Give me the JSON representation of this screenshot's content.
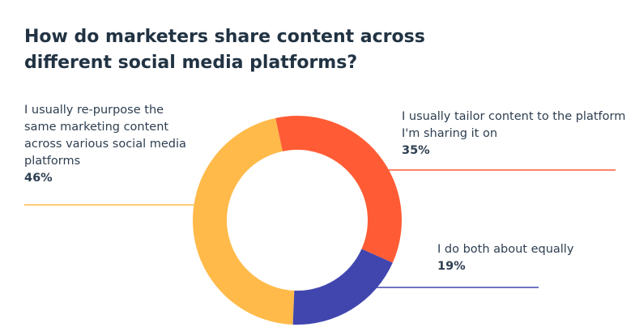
{
  "chart_data": {
    "type": "pie",
    "donut": true,
    "title": "How do marketers share content across different social media platforms?",
    "slices": [
      {
        "label": "I usually tailor content to the platform I'm sharing it on",
        "value": 35,
        "value_label": "35%",
        "color": "#FF5C35"
      },
      {
        "label": "I do both about equally",
        "value": 19,
        "value_label": "19%",
        "color": "#4146AF"
      },
      {
        "label": "I usually re-purpose the same marketing content across various social media platforms",
        "value": 46,
        "value_label": "46%",
        "color": "#FFBA4A"
      }
    ]
  }
}
